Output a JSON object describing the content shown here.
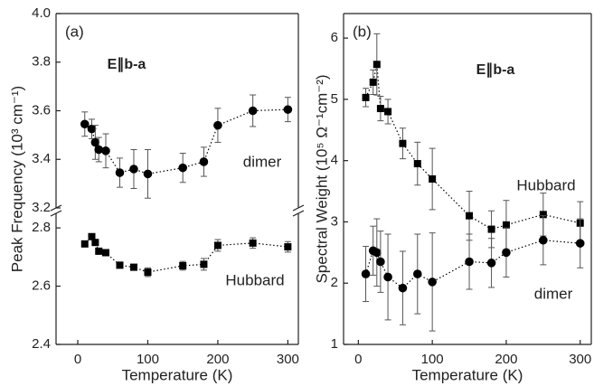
{
  "chart_data": [
    {
      "type": "scatter",
      "panel_label": "(a)",
      "annotation": "E∥b-a",
      "ylabel": "Peak Frequency (10³ cm⁻¹)",
      "xlabel": "Temperature (K)",
      "xlim": [
        -31,
        315
      ],
      "xticks": [
        0,
        100,
        200,
        300
      ],
      "x": [
        10,
        20,
        25,
        30,
        40,
        60,
        80,
        100,
        150,
        180,
        200,
        250,
        300
      ],
      "yaxis_segments": [
        {
          "ylim": [
            2.4,
            2.85
          ],
          "yticks": [
            2.4,
            2.6,
            2.8
          ]
        },
        {
          "ylim": [
            3.2,
            4.0
          ],
          "yticks": [
            3.2,
            3.4,
            3.6,
            3.8,
            {
              "value": 4,
              "label": "4.0"
            }
          ]
        }
      ],
      "series": [
        {
          "name": "dimer",
          "color": "#000000",
          "marker": "circle",
          "values": [
            3.545,
            3.525,
            3.47,
            3.44,
            3.435,
            3.345,
            3.36,
            3.34,
            3.365,
            3.39,
            3.54,
            3.6,
            3.605
          ],
          "errors": [
            0.05,
            0.04,
            0.07,
            0.05,
            0.07,
            0.06,
            0.08,
            0.1,
            0.06,
            0.06,
            0.07,
            0.065,
            0.05
          ]
        },
        {
          "name": "Hubbard",
          "color": "#000000",
          "marker": "square",
          "values": [
            2.745,
            2.77,
            2.75,
            2.72,
            2.715,
            2.672,
            2.665,
            2.648,
            2.67,
            2.675,
            2.74,
            2.748,
            2.735
          ],
          "errors": [
            0.008,
            0.01,
            0.01,
            0.008,
            0.008,
            0.01,
            0.01,
            0.015,
            0.015,
            0.02,
            0.02,
            0.018,
            0.018
          ]
        }
      ]
    },
    {
      "type": "scatter",
      "panel_label": "(b)",
      "annotation": "E∥b-a",
      "ylabel": "Spectral Weight (10⁵ Ω⁻¹cm⁻²)",
      "xlabel": "Temperature (K)",
      "xlim": [
        -20,
        315
      ],
      "xticks": [
        0,
        100,
        200,
        300
      ],
      "x": [
        10,
        20,
        25,
        30,
        40,
        60,
        80,
        100,
        150,
        180,
        200,
        250,
        300
      ],
      "ylim": [
        1,
        6.4
      ],
      "yticks": [
        1,
        2,
        3,
        4,
        5,
        6
      ],
      "series": [
        {
          "name": "Hubbard",
          "color": "#000000",
          "marker": "square",
          "values": [
            5.03,
            5.28,
            5.57,
            4.85,
            4.8,
            4.28,
            3.95,
            3.7,
            3.1,
            2.88,
            2.95,
            3.12,
            2.98
          ],
          "errors": [
            0.15,
            0.2,
            0.5,
            0.2,
            0.2,
            0.25,
            0.35,
            0.5,
            0.4,
            0.3,
            0.4,
            0.35,
            0.35
          ]
        },
        {
          "name": "dimer",
          "color": "#000000",
          "marker": "circle",
          "values": [
            2.15,
            2.53,
            2.5,
            2.35,
            2.1,
            1.92,
            2.15,
            2.02,
            2.35,
            2.33,
            2.5,
            2.7,
            2.65
          ],
          "errors": [
            0.45,
            0.4,
            0.55,
            0.5,
            0.7,
            0.6,
            0.65,
            0.8,
            0.45,
            0.4,
            0.4,
            0.4,
            0.4
          ]
        }
      ]
    }
  ]
}
